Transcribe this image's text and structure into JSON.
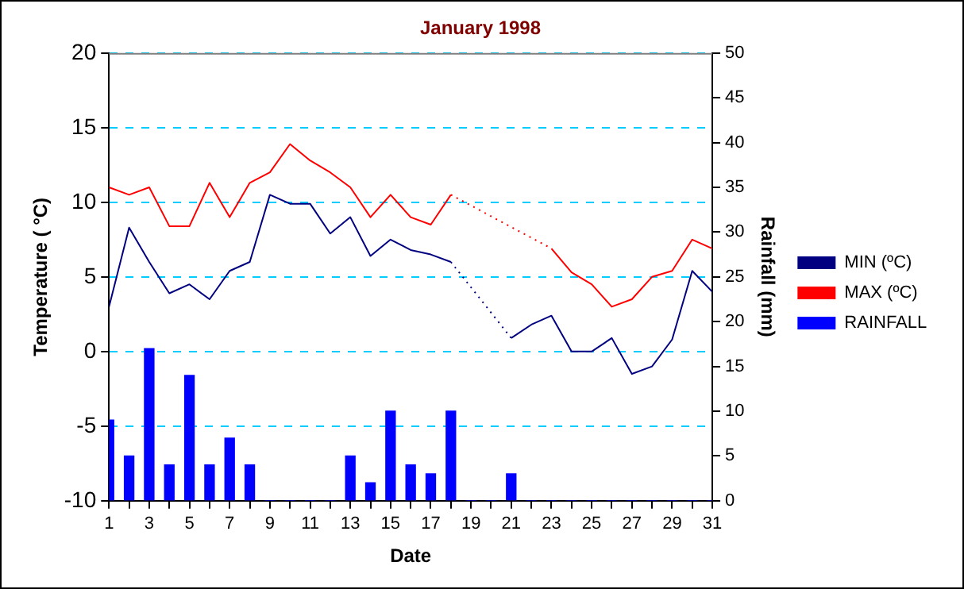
{
  "chart_data": {
    "type": "line",
    "title": "January 1998",
    "xlabel": "Date",
    "ylabel": "Temperature ( °C)",
    "y2label": "Rainfall (mm)",
    "x": [
      1,
      2,
      3,
      4,
      5,
      6,
      7,
      8,
      9,
      10,
      11,
      12,
      13,
      14,
      15,
      16,
      17,
      18,
      19,
      20,
      21,
      22,
      23,
      24,
      25,
      26,
      27,
      28,
      29,
      30,
      31
    ],
    "series": [
      {
        "name": "MIN (ºC)",
        "color": "#000080",
        "values": [
          3,
          8.3,
          6,
          3.9,
          4.5,
          3.5,
          5.4,
          6,
          10.5,
          9.9,
          9.9,
          7.9,
          9,
          6.4,
          7.5,
          6.8,
          6.5,
          6,
          null,
          null,
          0.9,
          1.8,
          2.4,
          0,
          0,
          0.9,
          -1.5,
          -1,
          0.8,
          5.4,
          4
        ]
      },
      {
        "name": "MAX (ºC)",
        "color": "#ff0000",
        "values": [
          11,
          10.5,
          11,
          8.4,
          8.4,
          11.3,
          9,
          11.3,
          12,
          13.9,
          12.8,
          12,
          11,
          9,
          10.5,
          9,
          8.5,
          10.5,
          null,
          null,
          null,
          null,
          6.9,
          5.3,
          4.5,
          3,
          3.5,
          5,
          5.4,
          7.5,
          6.9
        ]
      },
      {
        "name": "RAINFALL",
        "type": "bar",
        "axis": "y2",
        "color": "#0000ff",
        "values": [
          9,
          5,
          17,
          4,
          14,
          4,
          7,
          4,
          0,
          0,
          0,
          0,
          5,
          2,
          10,
          4,
          3,
          10,
          0,
          0,
          3,
          0,
          0,
          0,
          0,
          0,
          0,
          0,
          0,
          0,
          0
        ]
      }
    ],
    "xlim": [
      1,
      31
    ],
    "xticks": [
      1,
      {
        "value": 2,
        "label": null
      },
      3,
      {
        "value": 4,
        "label": null
      },
      5,
      {
        "value": 6,
        "label": null
      },
      7,
      {
        "value": 8,
        "label": null
      },
      9,
      {
        "value": 10,
        "label": null
      },
      11,
      {
        "value": 12,
        "label": null
      },
      13,
      {
        "value": 14,
        "label": null
      },
      15,
      {
        "value": 16,
        "label": null
      },
      17,
      {
        "value": 18,
        "label": null
      },
      19,
      {
        "value": 20,
        "label": null
      },
      21,
      {
        "value": 22,
        "label": null
      },
      23,
      {
        "value": 24,
        "label": null
      },
      25,
      {
        "value": 26,
        "label": null
      },
      27,
      {
        "value": 28,
        "label": null
      },
      29,
      {
        "value": 30,
        "label": null
      },
      31
    ],
    "ylim": [
      -10,
      20
    ],
    "yticks": [
      -10,
      -5,
      0,
      5,
      10,
      15,
      20
    ],
    "y2lim": [
      0,
      50
    ],
    "y2ticks": [
      0,
      5,
      10,
      15,
      20,
      25,
      30,
      35,
      40,
      45,
      50
    ],
    "grid": "y",
    "legend": "right",
    "marker": "none",
    "line_style": "solid"
  }
}
